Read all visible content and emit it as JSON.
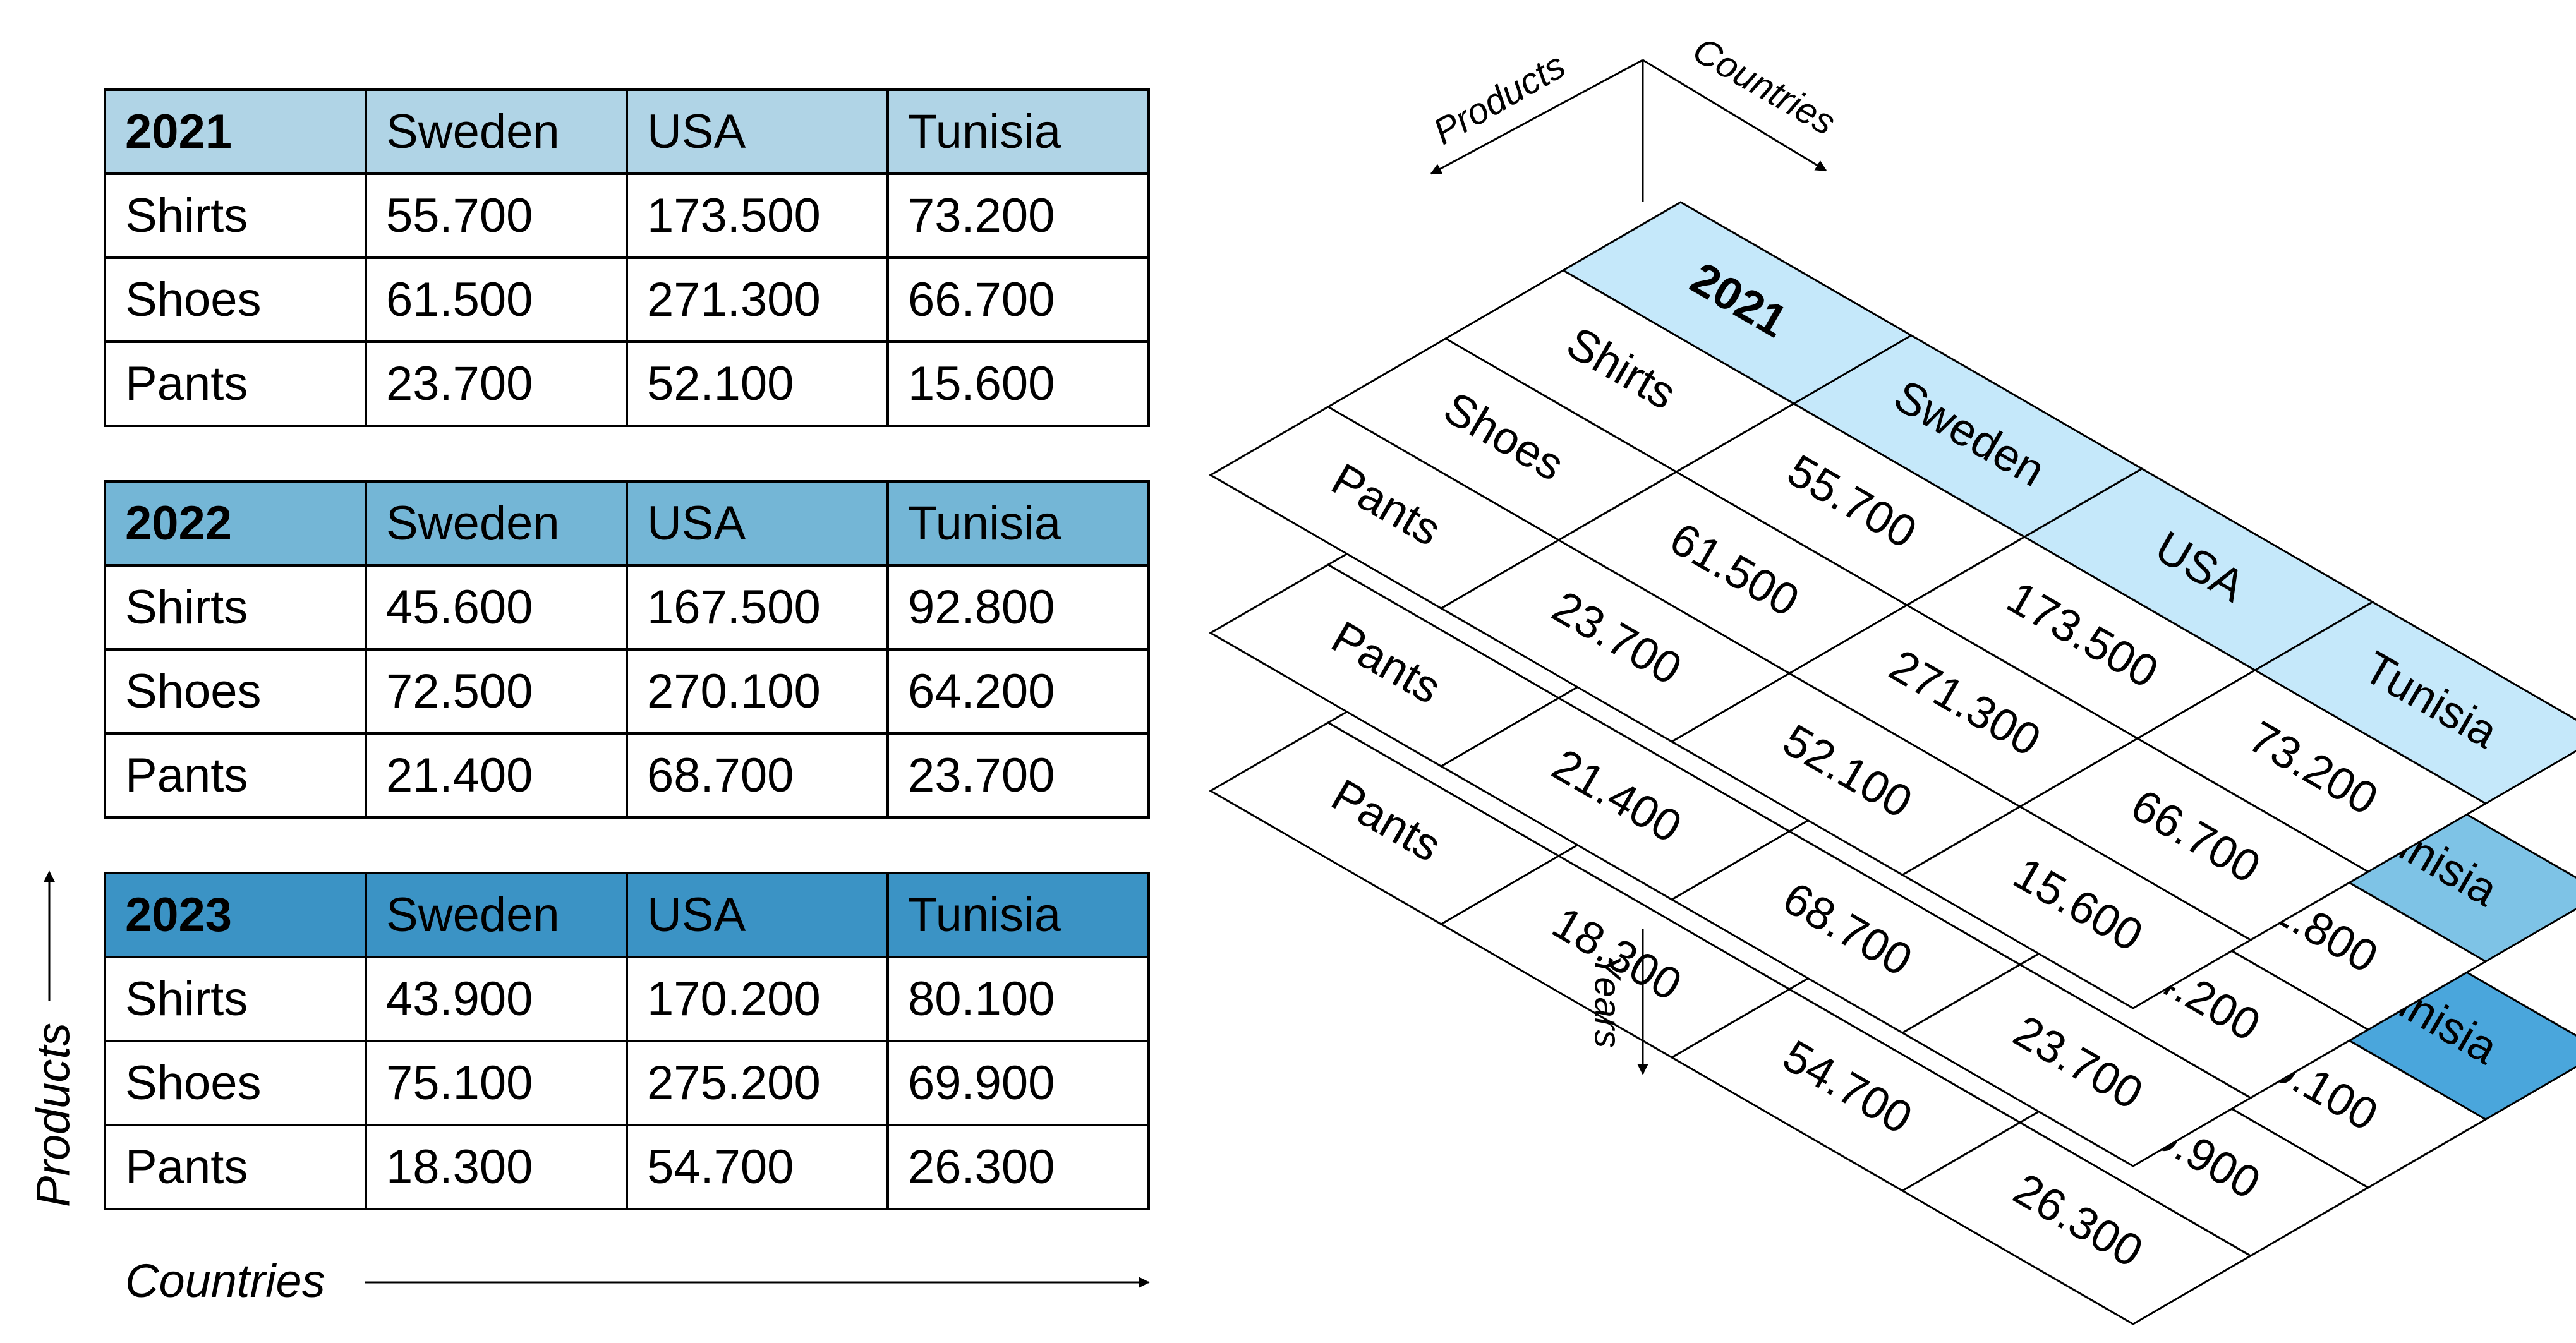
{
  "tables": [
    {
      "year": "2021",
      "countries": [
        "Sweden",
        "USA",
        "Tunisia"
      ],
      "rows": [
        {
          "product": "Shirts",
          "values": [
            "55.700",
            "173.500",
            "73.200"
          ]
        },
        {
          "product": "Shoes",
          "values": [
            "61.500",
            "271.300",
            "66.700"
          ]
        },
        {
          "product": "Pants",
          "values": [
            "23.700",
            "52.100",
            "15.600"
          ]
        }
      ]
    },
    {
      "year": "2022",
      "countries": [
        "Sweden",
        "USA",
        "Tunisia"
      ],
      "rows": [
        {
          "product": "Shirts",
          "values": [
            "45.600",
            "167.500",
            "92.800"
          ]
        },
        {
          "product": "Shoes",
          "values": [
            "72.500",
            "270.100",
            "64.200"
          ]
        },
        {
          "product": "Pants",
          "values": [
            "21.400",
            "68.700",
            "23.700"
          ]
        }
      ]
    },
    {
      "year": "2023",
      "countries": [
        "Sweden",
        "USA",
        "Tunisia"
      ],
      "rows": [
        {
          "product": "Shirts",
          "values": [
            "43.900",
            "170.200",
            "80.100"
          ]
        },
        {
          "product": "Shoes",
          "values": [
            "75.100",
            "275.200",
            "69.900"
          ]
        },
        {
          "product": "Pants",
          "values": [
            "18.300",
            "54.700",
            "26.300"
          ]
        }
      ]
    }
  ],
  "axes": {
    "countries": "Countries",
    "products": "Products",
    "years": "Years"
  },
  "colors": {
    "header_2021": "#b0d4e6",
    "header_2022": "#74b6d6",
    "header_2023": "#3b93c5",
    "iso_header_2021": "#c5e8fa",
    "iso_header_2022": "#7ec3e6",
    "iso_header_2023": "#4aa6dc"
  }
}
